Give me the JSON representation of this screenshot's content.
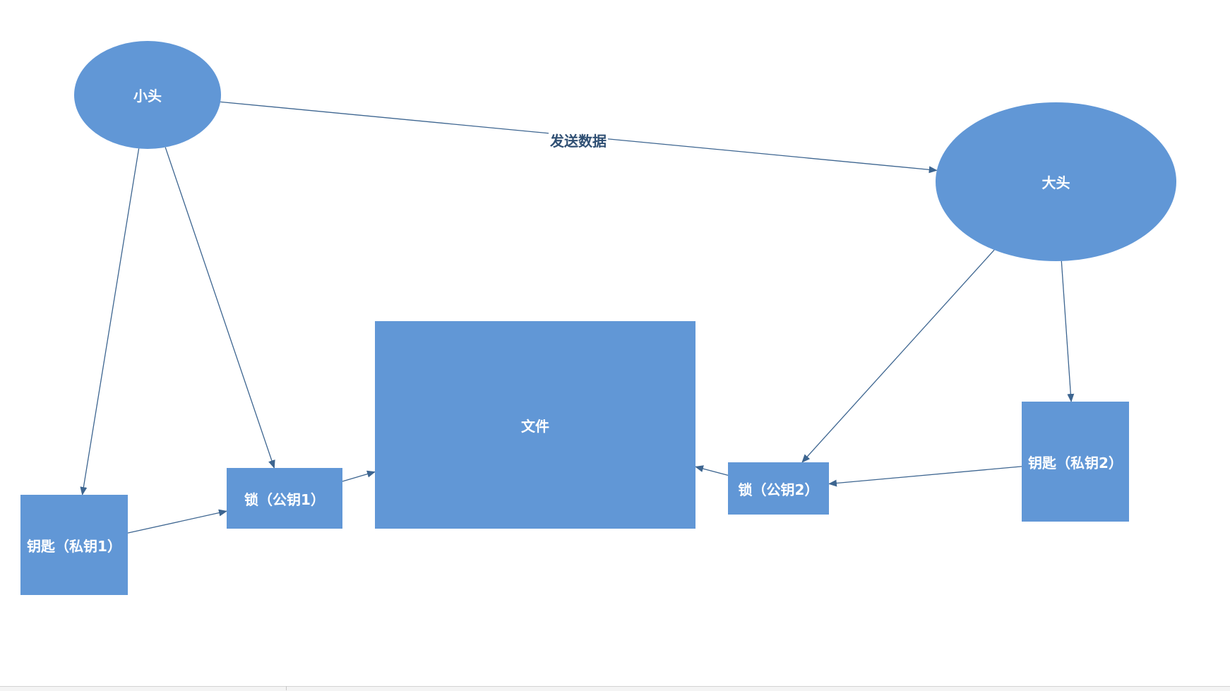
{
  "diagram": {
    "fill_color": "#6197d6",
    "edge_color": "#3d6590",
    "nodes": {
      "small_head": "小头",
      "big_head": "大头",
      "file": "文件",
      "key1": "钥匙（私钥1）",
      "lock1": "锁（公钥1）",
      "lock2": "锁（公钥2）",
      "key2": "钥匙（私钥2）"
    },
    "edge_labels": {
      "send_data": "发送数据"
    },
    "edges": [
      {
        "from": "small_head",
        "to": "big_head",
        "label": "send_data"
      },
      {
        "from": "small_head",
        "to": "key1"
      },
      {
        "from": "small_head",
        "to": "lock1"
      },
      {
        "from": "key1",
        "to": "lock1"
      },
      {
        "from": "lock1",
        "to": "file"
      },
      {
        "from": "big_head",
        "to": "key2"
      },
      {
        "from": "big_head",
        "to": "lock2"
      },
      {
        "from": "key2",
        "to": "lock2"
      },
      {
        "from": "lock2",
        "to": "file"
      }
    ]
  }
}
